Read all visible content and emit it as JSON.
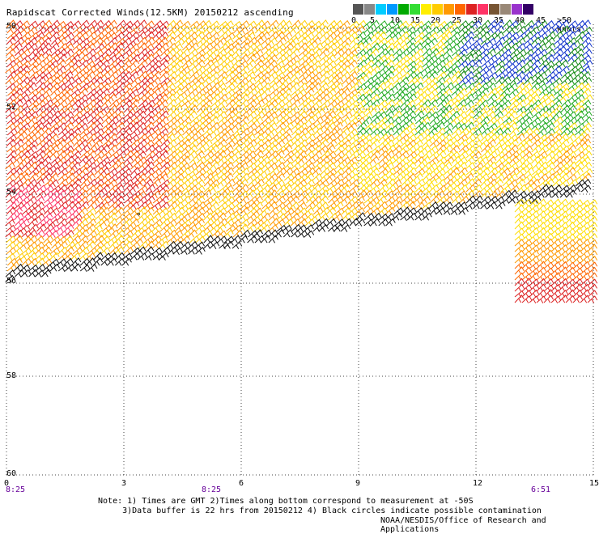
{
  "title": "Rapidscat Corrected Winds(12.5KM) 20150212 ascending",
  "scale": {
    "labels": [
      "0",
      "5",
      "10",
      "15",
      "20",
      "25",
      "30",
      "35",
      "40",
      "45",
      ">50 knots"
    ],
    "colors": [
      "#555555",
      "#888888",
      "#00ccff",
      "#0099ff",
      "#00aa00",
      "#33dd33",
      "#ffee00",
      "#ffcc00",
      "#ff9900",
      "#ff6600",
      "#dd2222",
      "#ff3366",
      "#775533",
      "#998877",
      "#9933cc",
      "#330066"
    ]
  },
  "axes": {
    "lat_labels": [
      "50",
      "52",
      "54",
      "56",
      "58",
      "60"
    ],
    "lon_labels": [
      "0",
      "3",
      "6",
      "9",
      "12",
      "15"
    ],
    "time_labels": [
      "8:25",
      "8:25",
      "6:51"
    ]
  },
  "notes": " Note: 1) Times are GMT 2)Times along bottom correspond to measurement at -50S\n      3)Data buffer is 22 hrs from 20150212 4) Black circles indicate possible contamination",
  "credit": "NOAA/NESDIS/Office of Research and Applications"
}
